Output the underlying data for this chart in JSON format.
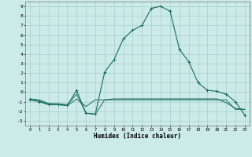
{
  "title": "",
  "xlabel": "Humidex (Indice chaleur)",
  "ylabel": "",
  "background_color": "#cceae7",
  "grid_color": "#aad4d0",
  "line_color": "#1a6b5e",
  "xlim": [
    -0.5,
    23.5
  ],
  "ylim": [
    -3.5,
    9.5
  ],
  "xticks": [
    0,
    1,
    2,
    3,
    4,
    5,
    6,
    7,
    8,
    9,
    10,
    11,
    12,
    13,
    14,
    15,
    16,
    17,
    18,
    19,
    20,
    21,
    22,
    23
  ],
  "yticks": [
    -3,
    -2,
    -1,
    0,
    1,
    2,
    3,
    4,
    5,
    6,
    7,
    8,
    9
  ],
  "series": [
    {
      "x": [
        0,
        1,
        2,
        3,
        4,
        5,
        6,
        7,
        8,
        9,
        10,
        11,
        12,
        13,
        14,
        15,
        16,
        17,
        18,
        19,
        20,
        21,
        22,
        23
      ],
      "y": [
        -0.7,
        -0.8,
        -1.2,
        -1.2,
        -1.3,
        -0.2,
        -2.2,
        -2.3,
        -0.8,
        -0.8,
        -0.8,
        -0.8,
        -0.8,
        -0.8,
        -0.8,
        -0.8,
        -0.8,
        -0.8,
        -0.8,
        -0.8,
        -0.8,
        -0.8,
        -1.8,
        -1.8
      ],
      "with_markers": false
    },
    {
      "x": [
        0,
        1,
        2,
        3,
        4,
        5,
        6,
        7,
        8,
        9,
        10,
        11,
        12,
        13,
        14,
        15,
        16,
        17,
        18,
        19,
        20,
        21,
        22,
        23
      ],
      "y": [
        -0.7,
        -0.9,
        -1.2,
        -1.3,
        -1.4,
        -0.7,
        -1.5,
        -0.8,
        -0.8,
        -0.7,
        -0.7,
        -0.7,
        -0.7,
        -0.7,
        -0.7,
        -0.7,
        -0.7,
        -0.7,
        -0.7,
        -0.7,
        -0.7,
        -1.1,
        -1.7,
        -1.8
      ],
      "with_markers": false
    },
    {
      "x": [
        0,
        1,
        2,
        3,
        4,
        5,
        6,
        7,
        8,
        9,
        10,
        11,
        12,
        13,
        14,
        15,
        16,
        17,
        18,
        19,
        20,
        21,
        22,
        23
      ],
      "y": [
        -0.8,
        -1.0,
        -1.3,
        -1.3,
        -1.4,
        0.2,
        -2.2,
        -2.3,
        2.1,
        3.4,
        5.6,
        6.5,
        7.0,
        8.8,
        9.0,
        8.5,
        4.5,
        3.2,
        1.0,
        0.2,
        0.1,
        -0.2,
        -1.0,
        -2.4
      ],
      "with_markers": true
    }
  ]
}
